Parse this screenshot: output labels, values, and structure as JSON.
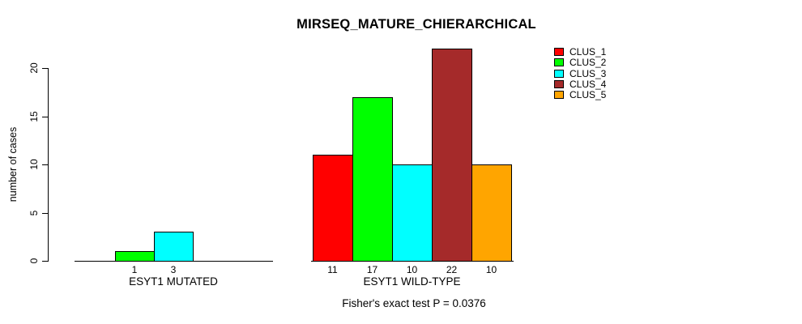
{
  "chart_data": {
    "type": "bar",
    "title": "MIRSEQ_MATURE_CHIERARCHICAL",
    "ylabel": "number of cases",
    "xlabel": "",
    "ylim": [
      0,
      22
    ],
    "yticks": [
      0,
      5,
      10,
      15,
      20
    ],
    "grid": false,
    "legend_position": "top-right",
    "categories": [
      "ESYT1 MUTATED",
      "ESYT1 WILD-TYPE"
    ],
    "series": [
      {
        "name": "CLUS_1",
        "color": "#FF0000",
        "values": [
          0,
          11
        ]
      },
      {
        "name": "CLUS_2",
        "color": "#00FF00",
        "values": [
          1,
          17
        ]
      },
      {
        "name": "CLUS_3",
        "color": "#00FFFF",
        "values": [
          3,
          10
        ]
      },
      {
        "name": "CLUS_4",
        "color": "#A52A2A",
        "values": [
          0,
          22
        ]
      },
      {
        "name": "CLUS_5",
        "color": "#FFA500",
        "values": [
          0,
          10
        ]
      }
    ],
    "annotation": "Fisher's exact test P = 0.0376"
  }
}
